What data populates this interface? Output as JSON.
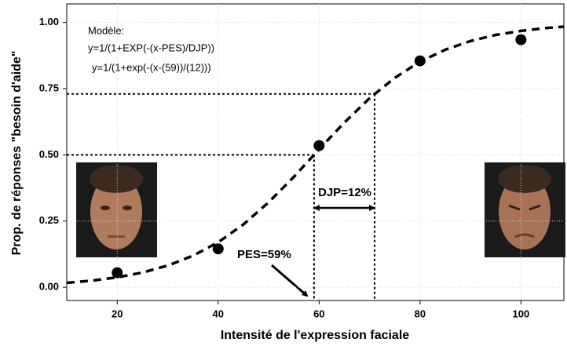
{
  "chart_data": {
    "type": "scatter",
    "xlabel": "Intensité de l'expression faciale",
    "ylabel": "Prop. de réponses \"besoin d'aide\"",
    "x": [
      20,
      40,
      60,
      80,
      100
    ],
    "values": [
      0.055,
      0.145,
      0.535,
      0.855,
      0.935
    ],
    "color": "#000000",
    "fit": {
      "x": [
        10,
        15,
        20,
        25,
        30,
        35,
        40,
        45,
        50,
        55,
        60,
        65,
        70,
        75,
        80,
        85,
        90,
        95,
        100,
        105,
        108.5
      ],
      "values": [
        0.0166,
        0.0249,
        0.0373,
        0.0555,
        0.0819,
        0.119,
        0.17,
        0.237,
        0.321,
        0.417,
        0.521,
        0.622,
        0.714,
        0.791,
        0.852,
        0.897,
        0.93,
        0.953,
        0.968,
        0.979,
        0.984
      ]
    },
    "guides": [
      {
        "x": 59,
        "y": 0.5
      },
      {
        "x": 71,
        "y": 0.73
      }
    ],
    "xlim": [
      10,
      108.5
    ],
    "ylim": [
      -0.05,
      1.07
    ],
    "xticks": [
      20,
      40,
      60,
      80,
      100
    ],
    "yticks": [
      {
        "value": 0,
        "label": "0.00"
      },
      0.25,
      {
        "value": 0.5,
        "label": "0.50"
      },
      0.75,
      {
        "value": 1,
        "label": "1.00"
      }
    ],
    "grid": true,
    "model": [
      "Modèle:",
      "y=1/(1+EXP(-(x-PES)/DJP))",
      "y=1/(1+exp(-(x-(59))/(12)))"
    ],
    "annotations": [
      "PES=59%",
      "DJP=12%"
    ]
  }
}
